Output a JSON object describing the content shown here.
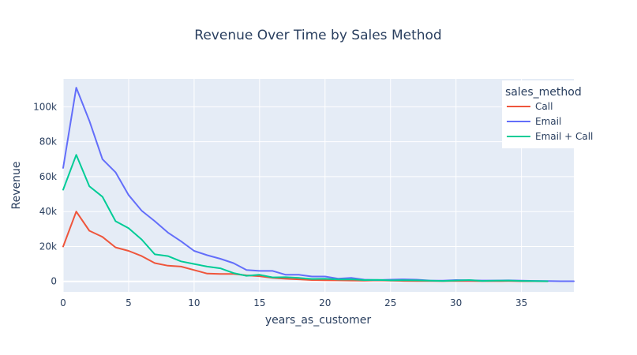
{
  "chart_data": {
    "type": "line",
    "title": "Revenue Over Time by Sales Method",
    "xlabel": "years_as_customer",
    "ylabel": "Revenue",
    "xlim": [
      0,
      39
    ],
    "ylim": [
      -6000,
      116000
    ],
    "x_ticks": [
      0,
      5,
      10,
      15,
      20,
      25,
      30,
      35
    ],
    "y_ticks": [
      0,
      20000,
      40000,
      60000,
      80000,
      100000
    ],
    "y_tick_labels": [
      "0",
      "20k",
      "40k",
      "60k",
      "80k",
      "100k"
    ],
    "grid": true,
    "legend": {
      "title": "sales_method",
      "position": "top-right"
    },
    "plot_background": "#e5ecf6",
    "series": [
      {
        "name": "Call",
        "color": "#ef553b",
        "x": [
          0,
          1,
          2,
          3,
          4,
          5,
          6,
          7,
          8,
          9,
          10,
          11,
          12,
          13,
          14,
          15,
          16,
          17,
          18,
          19,
          20,
          21,
          22,
          23,
          24,
          25,
          26,
          27,
          28,
          29,
          30,
          31,
          32,
          33,
          34,
          35,
          36,
          37
        ],
        "values": [
          20000,
          40000,
          29000,
          25500,
          19500,
          17500,
          14500,
          10500,
          9000,
          8500,
          6500,
          4500,
          4300,
          4300,
          3500,
          3000,
          2000,
          1500,
          1200,
          800,
          700,
          600,
          500,
          400,
          600,
          400,
          300,
          250,
          200,
          150,
          300,
          200,
          150,
          150,
          200,
          100,
          100,
          50
        ]
      },
      {
        "name": "Email",
        "color": "#636efa",
        "x": [
          0,
          1,
          2,
          3,
          4,
          5,
          6,
          7,
          8,
          9,
          10,
          11,
          12,
          13,
          14,
          15,
          16,
          17,
          18,
          19,
          20,
          21,
          22,
          23,
          24,
          25,
          26,
          27,
          28,
          29,
          30,
          31,
          32,
          33,
          34,
          35,
          36,
          37,
          38,
          39
        ],
        "values": [
          65000,
          111000,
          92000,
          70000,
          62500,
          49500,
          40500,
          34500,
          28000,
          23000,
          17500,
          15000,
          13000,
          10500,
          6500,
          6000,
          6000,
          3800,
          3800,
          2800,
          2800,
          1600,
          2000,
          1000,
          800,
          1000,
          1200,
          1000,
          500,
          400,
          800,
          700,
          500,
          500,
          600,
          400,
          300,
          200,
          100,
          100
        ]
      },
      {
        "name": "Email + Call",
        "color": "#00cc96",
        "x": [
          0,
          1,
          2,
          3,
          4,
          5,
          6,
          7,
          8,
          9,
          10,
          11,
          12,
          13,
          14,
          15,
          16,
          17,
          18,
          19,
          20,
          21,
          22,
          23,
          24,
          25,
          26,
          27,
          28,
          29,
          30,
          31,
          32,
          33,
          34,
          35,
          36,
          37
        ],
        "values": [
          52500,
          72500,
          54500,
          48500,
          34500,
          30500,
          24000,
          15500,
          14500,
          11500,
          10000,
          8500,
          7500,
          4800,
          3200,
          3800,
          2300,
          2400,
          2000,
          1400,
          1500,
          1100,
          1200,
          800,
          900,
          600,
          700,
          600,
          400,
          300,
          500,
          800,
          300,
          400,
          500,
          300,
          200,
          100
        ]
      }
    ]
  }
}
